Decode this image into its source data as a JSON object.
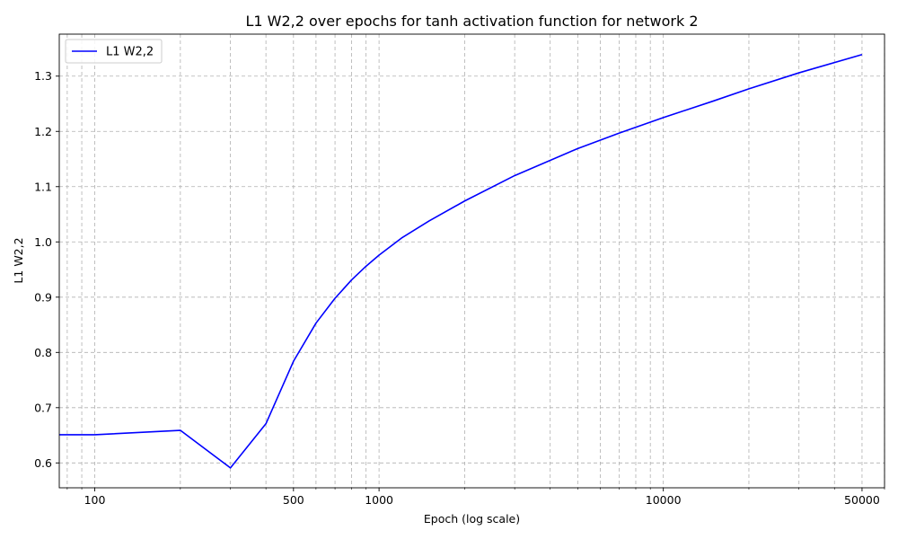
{
  "chart_data": {
    "type": "line",
    "title": "L1 W2,2 over epochs for tanh activation function for network 2",
    "xlabel": "Epoch (log scale)",
    "ylabel": "L1 W2,2",
    "xscale": "log",
    "xlim": [
      75,
      60000
    ],
    "ylim": [
      0.555,
      1.376
    ],
    "x_ticks": [
      100,
      500,
      1000,
      10000,
      50000
    ],
    "x_tick_labels": [
      "100",
      "500",
      "1000",
      "10000",
      "50000"
    ],
    "y_ticks": [
      0.6,
      0.7,
      0.8,
      0.9,
      1.0,
      1.1,
      1.2,
      1.3
    ],
    "y_tick_labels": [
      "0.6",
      "0.7",
      "0.8",
      "0.9",
      "1.0",
      "1.1",
      "1.2",
      "1.3"
    ],
    "grid": true,
    "legend_position": "top-left",
    "series": [
      {
        "name": "L1 W2,2",
        "color": "#0000ff",
        "x": [
          75,
          100,
          200,
          300,
          400,
          500,
          600,
          700,
          800,
          900,
          1000,
          1200,
          1500,
          2000,
          3000,
          5000,
          7000,
          10000,
          15000,
          20000,
          30000,
          50000
        ],
        "y": [
          0.651,
          0.651,
          0.659,
          0.591,
          0.671,
          0.784,
          0.853,
          0.898,
          0.931,
          0.956,
          0.976,
          1.007,
          1.038,
          1.074,
          1.12,
          1.169,
          1.197,
          1.225,
          1.255,
          1.277,
          1.306,
          1.339
        ]
      }
    ]
  }
}
